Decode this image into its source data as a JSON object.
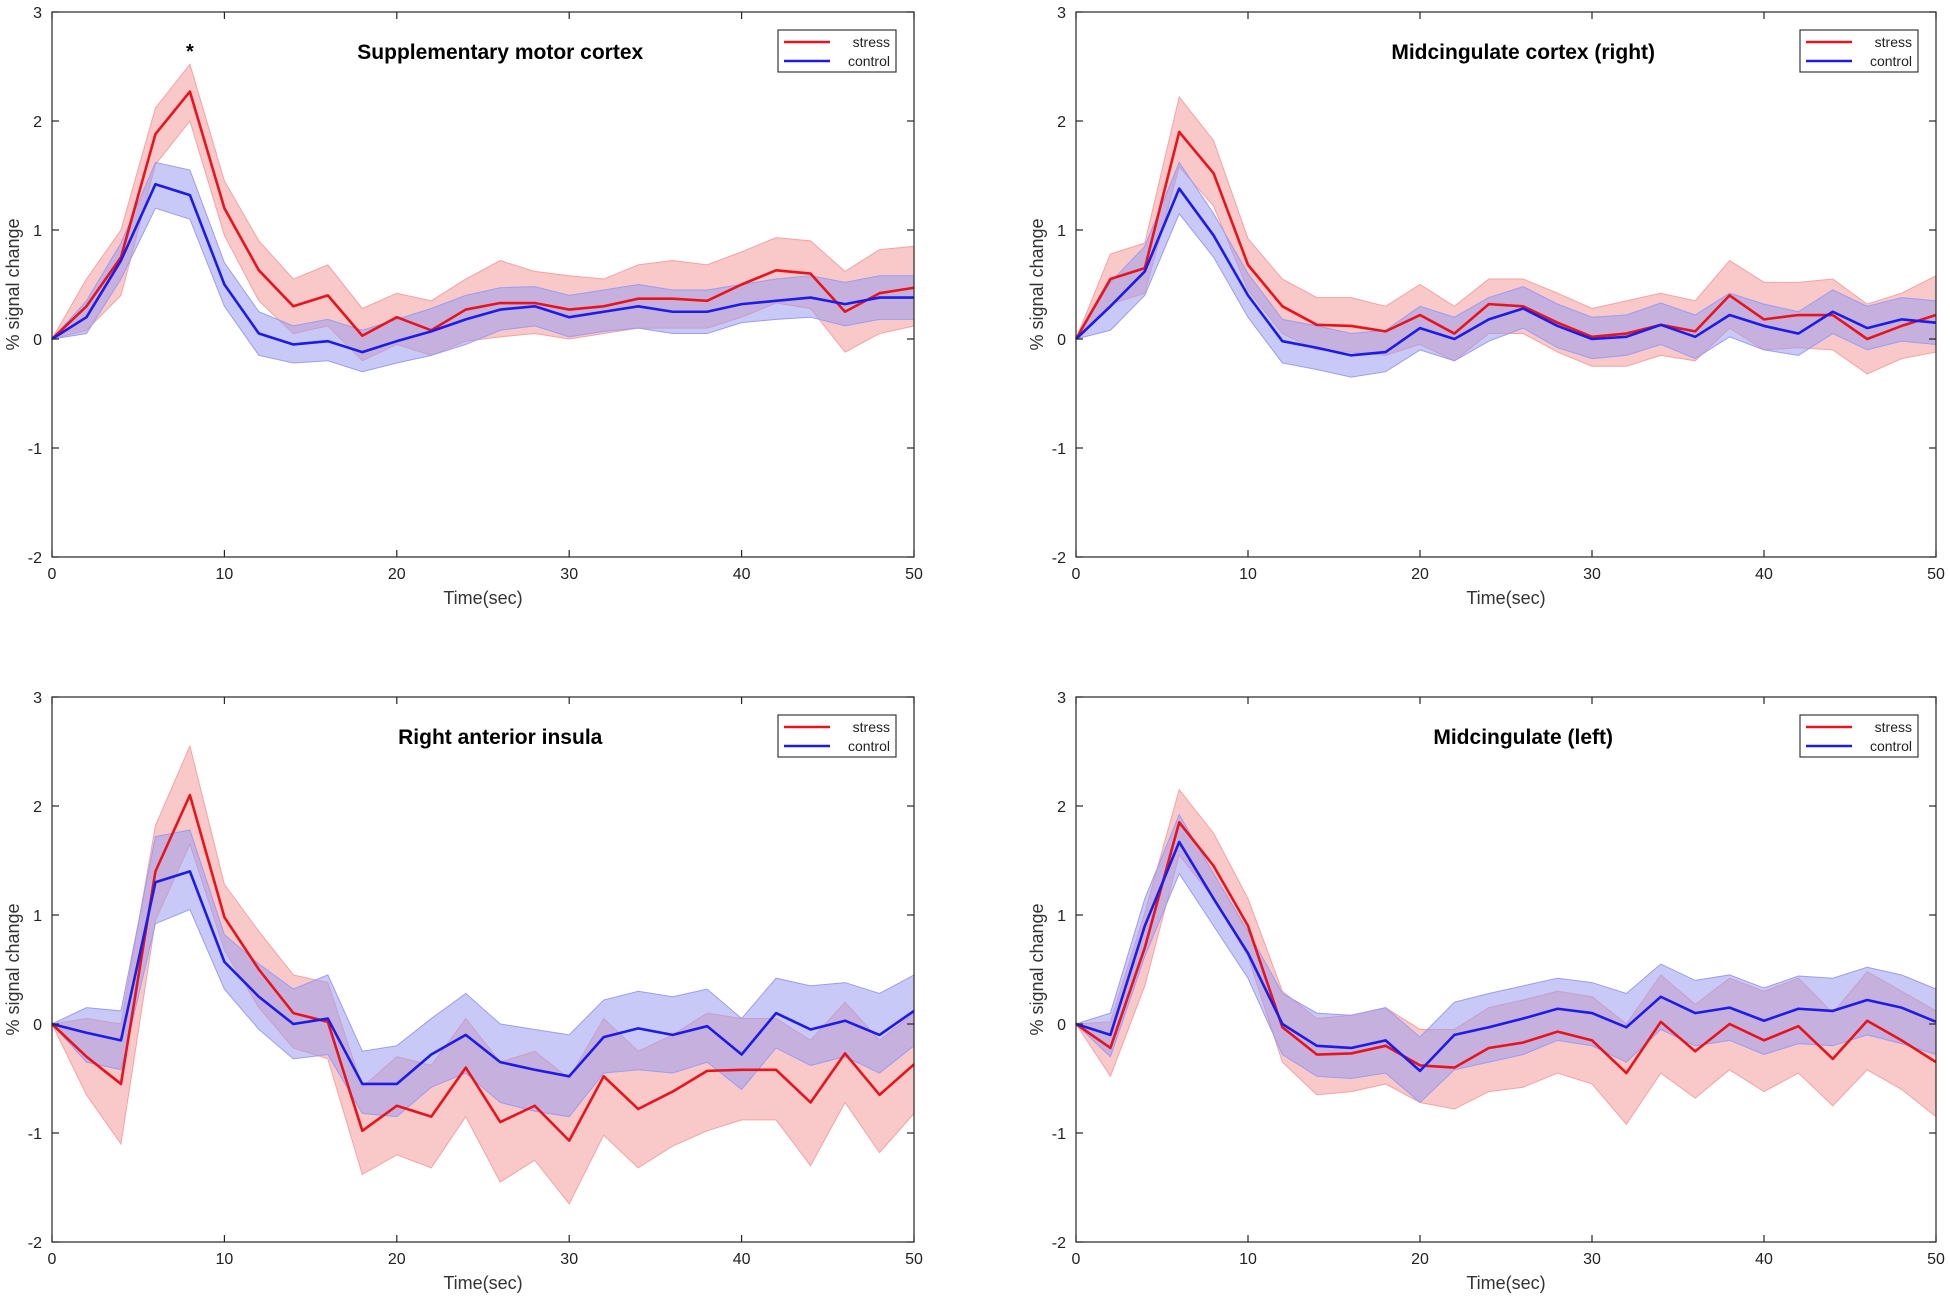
{
  "figure": {
    "background": "#ffffff"
  },
  "colors": {
    "stress": "#e8141c",
    "stress_band": "#f5a3a3",
    "control": "#1c1ce6",
    "control_band": "#9c9cf0",
    "axis": "#262626"
  },
  "chart_data": [
    {
      "type": "line",
      "title": "Supplementary motor cortex",
      "xlabel": "Time(sec)",
      "ylabel": "% signal change",
      "xlim": [
        0,
        50
      ],
      "ylim": [
        -2,
        3
      ],
      "xticks": [
        0,
        10,
        20,
        30,
        40,
        50
      ],
      "yticks": [
        -2,
        -1,
        0,
        1,
        2,
        3
      ],
      "legend": {
        "position": "top-right",
        "entries": [
          "stress",
          "control"
        ]
      },
      "annotations": [
        {
          "text": "*",
          "x": 8,
          "y": 2.65
        }
      ],
      "x": [
        0,
        2,
        4,
        6,
        8,
        10,
        12,
        14,
        16,
        18,
        20,
        22,
        24,
        26,
        28,
        30,
        32,
        34,
        36,
        38,
        40,
        42,
        44,
        46,
        48,
        50
      ],
      "series": [
        {
          "name": "stress",
          "values": [
            0,
            0.3,
            0.75,
            1.88,
            2.27,
            1.2,
            0.63,
            0.3,
            0.4,
            0.03,
            0.2,
            0.08,
            0.27,
            0.33,
            0.33,
            0.27,
            0.3,
            0.37,
            0.37,
            0.35,
            0.5,
            0.63,
            0.6,
            0.25,
            0.42,
            0.47
          ],
          "band_lower": [
            0,
            0.08,
            0.4,
            1.6,
            2.0,
            0.95,
            0.35,
            0.05,
            0.12,
            -0.2,
            -0.05,
            -0.15,
            -0.02,
            0.02,
            0.05,
            0.0,
            0.05,
            0.1,
            0.1,
            0.1,
            0.2,
            0.33,
            0.28,
            -0.12,
            0.05,
            0.12
          ],
          "band_upper": [
            0,
            0.55,
            1.0,
            2.12,
            2.52,
            1.45,
            0.9,
            0.55,
            0.68,
            0.28,
            0.42,
            0.35,
            0.55,
            0.72,
            0.62,
            0.58,
            0.55,
            0.68,
            0.72,
            0.68,
            0.8,
            0.93,
            0.9,
            0.62,
            0.82,
            0.85
          ]
        },
        {
          "name": "control",
          "values": [
            0,
            0.2,
            0.72,
            1.42,
            1.32,
            0.5,
            0.05,
            -0.05,
            -0.02,
            -0.12,
            -0.02,
            0.07,
            0.18,
            0.27,
            0.3,
            0.2,
            0.25,
            0.3,
            0.25,
            0.25,
            0.32,
            0.35,
            0.38,
            0.32,
            0.38,
            0.38
          ],
          "band_lower": [
            0,
            0.05,
            0.55,
            1.2,
            1.1,
            0.3,
            -0.15,
            -0.22,
            -0.2,
            -0.3,
            -0.22,
            -0.15,
            -0.05,
            0.08,
            0.12,
            0.02,
            0.07,
            0.1,
            0.05,
            0.05,
            0.15,
            0.18,
            0.2,
            0.12,
            0.18,
            0.18
          ],
          "band_upper": [
            0,
            0.35,
            0.88,
            1.62,
            1.55,
            0.7,
            0.25,
            0.12,
            0.18,
            0.08,
            0.18,
            0.28,
            0.4,
            0.47,
            0.48,
            0.4,
            0.45,
            0.5,
            0.45,
            0.45,
            0.5,
            0.55,
            0.58,
            0.52,
            0.58,
            0.58
          ]
        }
      ]
    },
    {
      "type": "line",
      "title": "Midcingulate cortex (right)",
      "xlabel": "Time(sec)",
      "ylabel": "% signal change",
      "xlim": [
        0,
        50
      ],
      "ylim": [
        -2,
        3
      ],
      "xticks": [
        0,
        10,
        20,
        30,
        40,
        50
      ],
      "yticks": [
        -2,
        -1,
        0,
        1,
        2,
        3
      ],
      "legend": {
        "position": "top-right",
        "entries": [
          "stress",
          "control"
        ]
      },
      "annotations": [],
      "x": [
        0,
        2,
        4,
        6,
        8,
        10,
        12,
        14,
        16,
        18,
        20,
        22,
        24,
        26,
        28,
        30,
        32,
        34,
        36,
        38,
        40,
        42,
        44,
        46,
        48,
        50
      ],
      "series": [
        {
          "name": "stress",
          "values": [
            0,
            0.55,
            0.65,
            1.9,
            1.52,
            0.68,
            0.3,
            0.13,
            0.12,
            0.07,
            0.22,
            0.05,
            0.32,
            0.3,
            0.15,
            0.02,
            0.05,
            0.13,
            0.07,
            0.4,
            0.18,
            0.22,
            0.22,
            0.0,
            0.12,
            0.22
          ],
          "band_lower": [
            0,
            0.32,
            0.42,
            1.58,
            1.22,
            0.45,
            0.05,
            -0.1,
            -0.12,
            -0.15,
            -0.05,
            -0.2,
            0.05,
            0.05,
            -0.12,
            -0.25,
            -0.25,
            -0.15,
            -0.2,
            0.1,
            -0.1,
            -0.08,
            -0.1,
            -0.32,
            -0.18,
            -0.12
          ],
          "band_upper": [
            0,
            0.78,
            0.88,
            2.22,
            1.82,
            0.92,
            0.55,
            0.38,
            0.38,
            0.3,
            0.5,
            0.3,
            0.55,
            0.55,
            0.42,
            0.28,
            0.35,
            0.42,
            0.35,
            0.72,
            0.52,
            0.52,
            0.55,
            0.32,
            0.42,
            0.58
          ]
        },
        {
          "name": "control",
          "values": [
            0,
            0.3,
            0.62,
            1.38,
            0.95,
            0.4,
            -0.02,
            -0.08,
            -0.15,
            -0.12,
            0.1,
            0.0,
            0.18,
            0.28,
            0.12,
            0.0,
            0.02,
            0.13,
            0.02,
            0.22,
            0.12,
            0.05,
            0.25,
            0.1,
            0.18,
            0.15
          ],
          "band_lower": [
            0,
            0.08,
            0.4,
            1.15,
            0.75,
            0.2,
            -0.22,
            -0.28,
            -0.35,
            -0.3,
            -0.1,
            -0.2,
            -0.02,
            0.1,
            -0.08,
            -0.18,
            -0.15,
            -0.05,
            -0.18,
            0.02,
            -0.1,
            -0.15,
            0.05,
            -0.1,
            -0.02,
            -0.05
          ],
          "band_upper": [
            0,
            0.52,
            0.85,
            1.62,
            1.15,
            0.6,
            0.18,
            0.12,
            0.05,
            0.08,
            0.3,
            0.2,
            0.38,
            0.48,
            0.32,
            0.2,
            0.22,
            0.33,
            0.22,
            0.42,
            0.32,
            0.25,
            0.45,
            0.3,
            0.38,
            0.35
          ]
        }
      ]
    },
    {
      "type": "line",
      "title": "Right anterior insula",
      "xlabel": "Time(sec)",
      "ylabel": "% signal change",
      "xlim": [
        0,
        50
      ],
      "ylim": [
        -2,
        3
      ],
      "xticks": [
        0,
        10,
        20,
        30,
        40,
        50
      ],
      "yticks": [
        -2,
        -1,
        0,
        1,
        2,
        3
      ],
      "legend": {
        "position": "top-right",
        "entries": [
          "stress",
          "control"
        ]
      },
      "annotations": [],
      "x": [
        0,
        2,
        4,
        6,
        8,
        10,
        12,
        14,
        16,
        18,
        20,
        22,
        24,
        26,
        28,
        30,
        32,
        34,
        36,
        38,
        40,
        42,
        44,
        46,
        48,
        50
      ],
      "series": [
        {
          "name": "stress",
          "values": [
            0,
            -0.3,
            -0.55,
            1.4,
            2.1,
            0.98,
            0.5,
            0.1,
            0.02,
            -0.98,
            -0.75,
            -0.85,
            -0.4,
            -0.9,
            -0.75,
            -1.07,
            -0.48,
            -0.78,
            -0.62,
            -0.43,
            -0.42,
            -0.42,
            -0.72,
            -0.27,
            -0.65,
            -0.37
          ],
          "band_lower": [
            0,
            -0.65,
            -1.1,
            0.95,
            1.65,
            0.68,
            0.15,
            -0.22,
            -0.32,
            -1.38,
            -1.2,
            -1.32,
            -0.85,
            -1.45,
            -1.25,
            -1.65,
            -1.02,
            -1.32,
            -1.12,
            -0.98,
            -0.88,
            -0.88,
            -1.3,
            -0.72,
            -1.18,
            -0.82
          ],
          "band_upper": [
            0,
            0.05,
            0.0,
            1.82,
            2.55,
            1.28,
            0.85,
            0.45,
            0.38,
            -0.58,
            -0.3,
            -0.38,
            0.05,
            -0.35,
            -0.25,
            -0.5,
            0.05,
            -0.25,
            -0.1,
            0.1,
            0.05,
            0.05,
            -0.15,
            0.2,
            -0.15,
            0.1
          ]
        },
        {
          "name": "control",
          "values": [
            0,
            -0.08,
            -0.15,
            1.3,
            1.4,
            0.57,
            0.25,
            0.0,
            0.05,
            -0.55,
            -0.55,
            -0.28,
            -0.1,
            -0.35,
            -0.42,
            -0.48,
            -0.12,
            -0.04,
            -0.1,
            -0.02,
            -0.28,
            0.1,
            -0.05,
            0.03,
            -0.1,
            0.12
          ],
          "band_lower": [
            0,
            -0.35,
            -0.42,
            0.92,
            1.05,
            0.32,
            -0.05,
            -0.32,
            -0.28,
            -0.82,
            -0.85,
            -0.58,
            -0.45,
            -0.72,
            -0.8,
            -0.85,
            -0.45,
            -0.42,
            -0.45,
            -0.35,
            -0.6,
            -0.22,
            -0.38,
            -0.3,
            -0.45,
            -0.2
          ],
          "band_upper": [
            0,
            0.15,
            0.12,
            1.72,
            1.78,
            0.82,
            0.55,
            0.32,
            0.45,
            -0.25,
            -0.2,
            0.05,
            0.28,
            0.0,
            -0.05,
            -0.1,
            0.22,
            0.3,
            0.25,
            0.32,
            0.05,
            0.42,
            0.35,
            0.38,
            0.28,
            0.45
          ]
        }
      ]
    },
    {
      "type": "line",
      "title": "Midcingulate (left)",
      "xlabel": "Time(sec)",
      "ylabel": "% signal change",
      "xlim": [
        0,
        50
      ],
      "ylim": [
        -2,
        3
      ],
      "xticks": [
        0,
        10,
        20,
        30,
        40,
        50
      ],
      "yticks": [
        -2,
        -1,
        0,
        1,
        2,
        3
      ],
      "legend": {
        "position": "top-right",
        "entries": [
          "stress",
          "control"
        ]
      },
      "annotations": [],
      "x": [
        0,
        2,
        4,
        6,
        8,
        10,
        12,
        14,
        16,
        18,
        20,
        22,
        24,
        26,
        28,
        30,
        32,
        34,
        36,
        38,
        40,
        42,
        44,
        46,
        48,
        50
      ],
      "series": [
        {
          "name": "stress",
          "values": [
            0,
            -0.22,
            0.7,
            1.85,
            1.45,
            0.9,
            -0.03,
            -0.28,
            -0.27,
            -0.2,
            -0.38,
            -0.4,
            -0.22,
            -0.17,
            -0.07,
            -0.15,
            -0.45,
            0.02,
            -0.25,
            0.0,
            -0.15,
            -0.02,
            -0.32,
            0.03,
            -0.15,
            -0.35
          ],
          "band_lower": [
            0,
            -0.48,
            0.35,
            1.55,
            1.15,
            0.62,
            -0.35,
            -0.65,
            -0.62,
            -0.55,
            -0.72,
            -0.78,
            -0.62,
            -0.58,
            -0.45,
            -0.55,
            -0.92,
            -0.45,
            -0.68,
            -0.42,
            -0.62,
            -0.45,
            -0.75,
            -0.42,
            -0.6,
            -0.85
          ],
          "band_upper": [
            0,
            0.02,
            1.02,
            2.15,
            1.75,
            1.15,
            0.3,
            0.05,
            0.08,
            0.15,
            -0.05,
            -0.05,
            0.15,
            0.22,
            0.3,
            0.25,
            0.0,
            0.45,
            0.18,
            0.42,
            0.3,
            0.42,
            0.1,
            0.48,
            0.3,
            0.12
          ]
        },
        {
          "name": "control",
          "values": [
            0,
            -0.1,
            0.9,
            1.67,
            1.15,
            0.65,
            0.0,
            -0.2,
            -0.22,
            -0.15,
            -0.43,
            -0.1,
            -0.03,
            0.05,
            0.14,
            0.1,
            -0.03,
            0.25,
            0.1,
            0.15,
            0.03,
            0.14,
            0.12,
            0.22,
            0.15,
            0.02
          ],
          "band_lower": [
            0,
            -0.3,
            0.62,
            1.38,
            0.9,
            0.42,
            -0.28,
            -0.48,
            -0.5,
            -0.45,
            -0.72,
            -0.42,
            -0.35,
            -0.28,
            -0.15,
            -0.2,
            -0.35,
            -0.05,
            -0.2,
            -0.15,
            -0.28,
            -0.18,
            -0.2,
            -0.1,
            -0.18,
            -0.28
          ],
          "band_upper": [
            0,
            0.1,
            1.15,
            1.92,
            1.38,
            0.85,
            0.28,
            0.1,
            0.08,
            0.15,
            -0.12,
            0.2,
            0.28,
            0.35,
            0.42,
            0.38,
            0.28,
            0.55,
            0.4,
            0.45,
            0.33,
            0.44,
            0.42,
            0.52,
            0.45,
            0.32
          ]
        }
      ]
    }
  ]
}
